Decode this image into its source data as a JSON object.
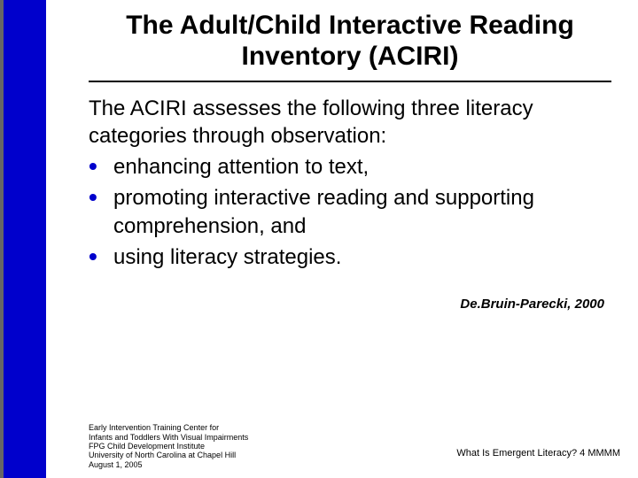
{
  "title": "The Adult/Child Interactive Reading Inventory (ACIRI)",
  "intro": "The ACIRI assesses the following three literacy categories through observation:",
  "bullets": [
    "enhancing attention to text,",
    "promoting interactive reading and supporting comprehension, and",
    "using literacy strategies."
  ],
  "citation": "De.Bruin-Parecki, 2000",
  "footer_left_lines": [
    "Early Intervention Training Center for",
    "Infants and Toddlers With Visual Impairments",
    "FPG Child Development Institute",
    "University of North Carolina at Chapel Hill",
    "August 1, 2005"
  ],
  "footer_right": "What Is Emergent Literacy?  4 MMMM",
  "colors": {
    "sidebar": "#0000cc",
    "bullet": "#0000cc",
    "text": "#000000",
    "background": "#ffffff"
  }
}
